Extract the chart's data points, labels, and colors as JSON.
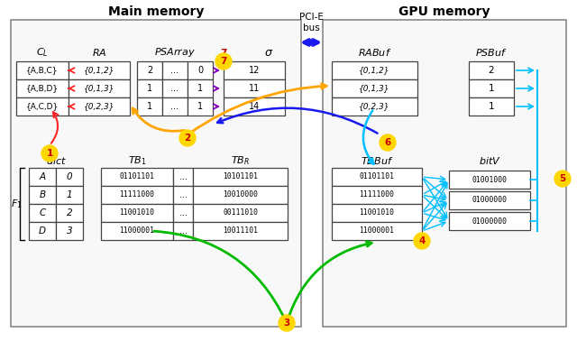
{
  "title_main": "Main memory",
  "title_gpu": "GPU memory",
  "title_bus": "PCI-E\nbus",
  "bg_color": "#ffffff",
  "cl_col": [
    "{A,B,C}",
    "{A,B,D}",
    "{A,C,D}"
  ],
  "ra_col": [
    "{0,1,2}",
    "{0,1,3}",
    "{0,2,3}"
  ],
  "ps_num": [
    "2",
    "1",
    "1"
  ],
  "ps_dots": [
    "...",
    "...",
    "..."
  ],
  "ps_val": [
    "0",
    "1",
    "1"
  ],
  "sigma_col": [
    "12",
    "11",
    "14"
  ],
  "dict_letters": [
    "A",
    "B",
    "C",
    "D"
  ],
  "dict_nums": [
    "0",
    "1",
    "2",
    "3"
  ],
  "tb1_rows": [
    "01101101",
    "11111000",
    "11001010",
    "11000001"
  ],
  "tbr_rows": [
    "10101101",
    "10010000",
    "00111010",
    "10011101"
  ],
  "rabuf_rows": [
    "{0,1,2}",
    "{0,1,3}",
    "{0,2,3}"
  ],
  "psbuf_rows": [
    "2",
    "1",
    "1"
  ],
  "tbbuf_rows": [
    "01101101",
    "11111000",
    "11001010",
    "11000001"
  ],
  "bitv_rows": [
    "01001000",
    "01000000",
    "01000000"
  ],
  "step_color": "#FFD700",
  "step_text_color": "#CC0000",
  "arrow_red": "#ff2222",
  "arrow_orange": "#FFA500",
  "arrow_blue": "#1a1aee",
  "arrow_cyan": "#00BFFF",
  "arrow_green": "#00BB00",
  "arrow_purple": "#8800BB",
  "box_edge": "#444444",
  "box_face": "#ffffff",
  "region_face": "#f8f8f8",
  "region_edge": "#888888"
}
